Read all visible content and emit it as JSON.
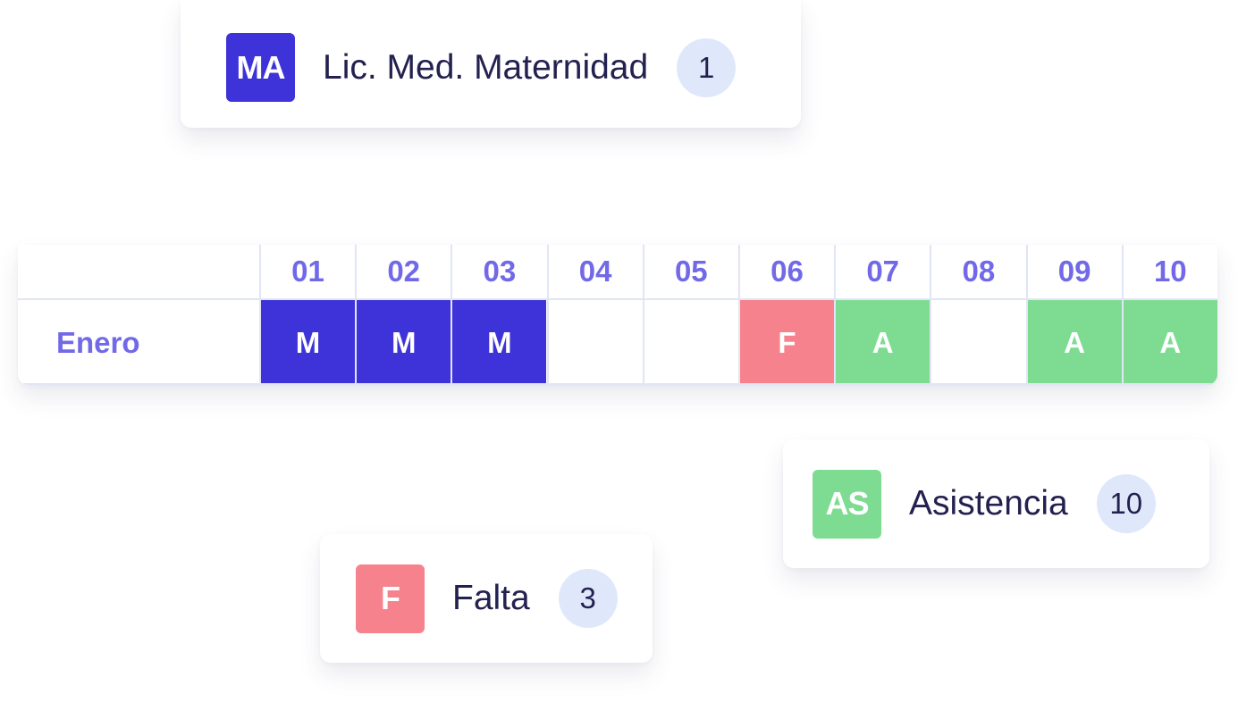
{
  "legend": {
    "maternidad": {
      "code": "MA",
      "label": "Lic. Med. Maternidad",
      "count": "1",
      "color": "#3d33d9"
    },
    "asistencia": {
      "code": "AS",
      "label": "Asistencia",
      "count": "10",
      "color": "#7edc92"
    },
    "falta": {
      "code": "F",
      "label": "Falta",
      "count": "3",
      "color": "#f5828c"
    }
  },
  "colors": {
    "M": "#3d33d9",
    "F": "#f5828c",
    "A": "#7edc92",
    "pill": "#dfe8fb",
    "text_dark": "#23214f",
    "text_accent": "#7169e8"
  },
  "calendar": {
    "month": "Enero",
    "days": [
      {
        "day": "01",
        "code": "M"
      },
      {
        "day": "02",
        "code": "M"
      },
      {
        "day": "03",
        "code": "M"
      },
      {
        "day": "04",
        "code": ""
      },
      {
        "day": "05",
        "code": ""
      },
      {
        "day": "06",
        "code": "F"
      },
      {
        "day": "07",
        "code": "A"
      },
      {
        "day": "08",
        "code": ""
      },
      {
        "day": "09",
        "code": "A"
      },
      {
        "day": "10",
        "code": "A"
      }
    ]
  }
}
